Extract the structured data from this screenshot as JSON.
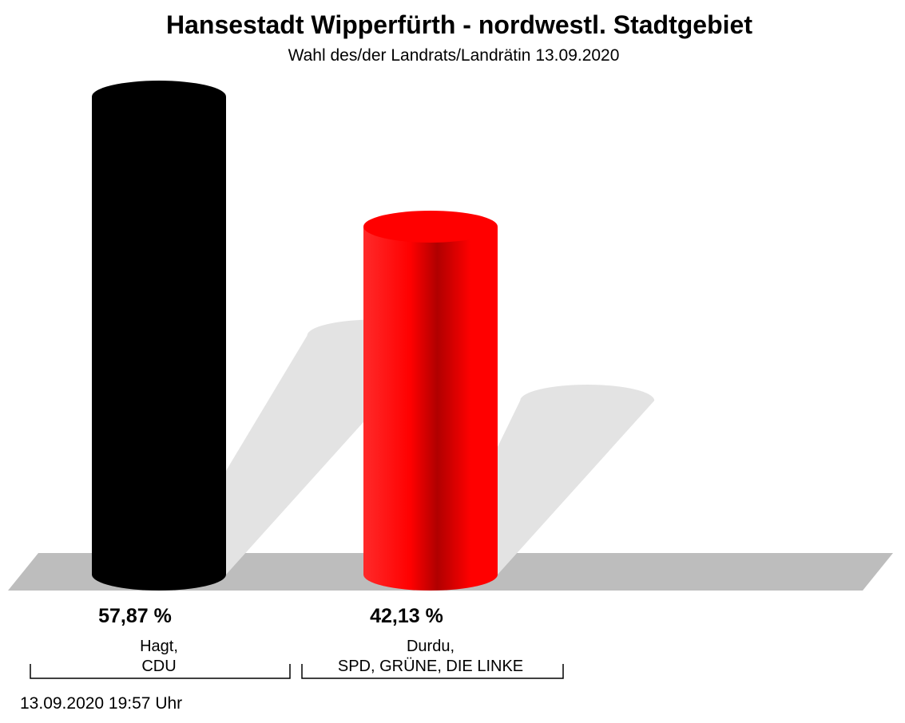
{
  "chart_data": {
    "type": "bar",
    "title": "Hansestadt Wipperfürth - nordwestl. Stadtgebiet",
    "subtitle": "Wahl des/der Landrats/Landrätin 13.09.2020",
    "categories": [
      "Hagt,\nCDU",
      "Durdu,\nSPD, GRÜNE, DIE LINKE"
    ],
    "values": [
      57.87,
      42.13
    ],
    "value_labels": [
      "57,87 %",
      "42,13 %"
    ],
    "colors": [
      "#000000",
      "#ff0000"
    ],
    "footer": "13.09.2020 19:57 Uhr"
  }
}
